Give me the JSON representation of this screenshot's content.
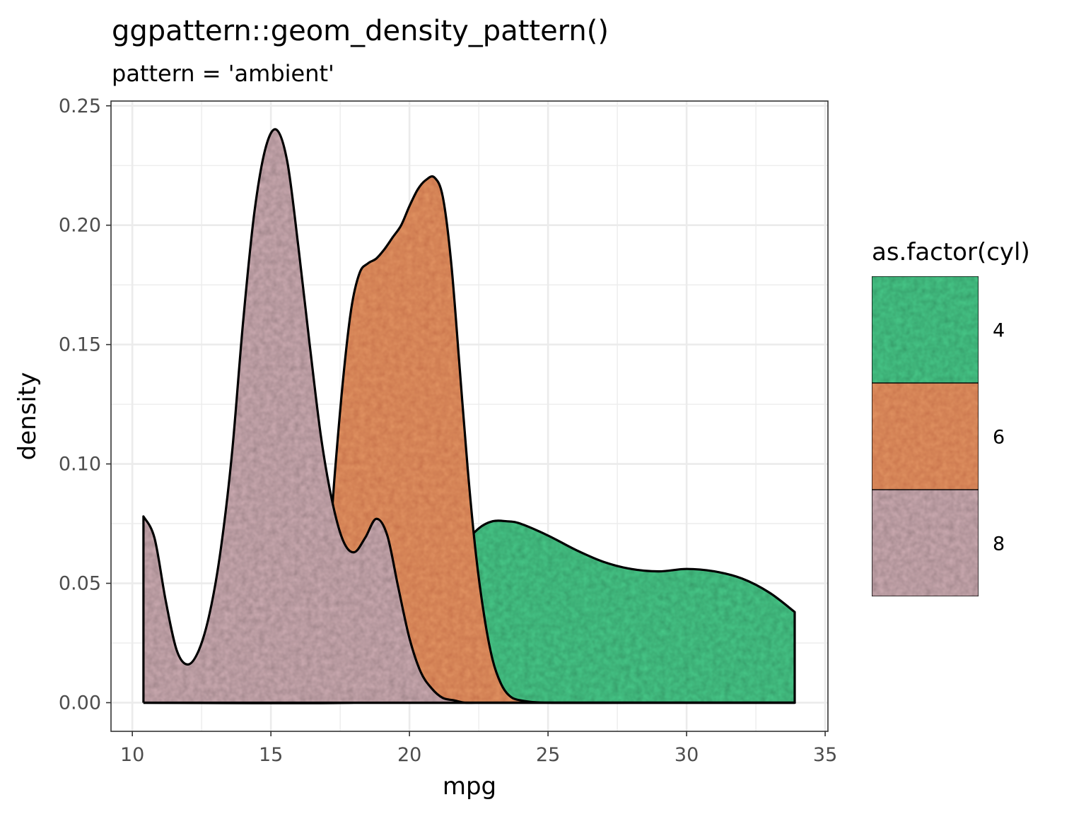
{
  "chart_data": {
    "type": "area",
    "title": "ggpattern::geom_density_pattern()",
    "subtitle": "pattern = 'ambient'",
    "xlabel": "mpg",
    "ylabel": "density",
    "xlim": [
      9.23,
      35.1
    ],
    "ylim": [
      -0.012,
      0.252
    ],
    "x_ticks": [
      10,
      15,
      20,
      25,
      30,
      35
    ],
    "x_tick_labels": [
      "10",
      "15",
      "20",
      "25",
      "30",
      "35"
    ],
    "y_ticks": [
      0,
      0.05,
      0.1,
      0.15,
      0.2,
      0.25
    ],
    "y_tick_labels": [
      "0.00",
      "0.05",
      "0.10",
      "0.15",
      "0.20",
      "0.25"
    ],
    "grid": true,
    "legend": {
      "title": "as.factor(cyl)",
      "position": "right",
      "entries": [
        "4",
        "6",
        "8"
      ]
    },
    "series": [
      {
        "name": "8",
        "color": "#b89aa0",
        "x": [
          10.4,
          10.8,
          11.2,
          11.6,
          12.0,
          12.4,
          12.8,
          13.2,
          13.6,
          14.0,
          14.4,
          14.8,
          15.2,
          15.6,
          16.0,
          16.4,
          16.8,
          17.2,
          17.6,
          18.0,
          18.4,
          18.8,
          19.2,
          19.6,
          20.0,
          20.4,
          20.8,
          21.2,
          21.6,
          22.0,
          22.4,
          23.0,
          24.0,
          26.0,
          30.0,
          33.9
        ],
        "y": [
          0.078,
          0.069,
          0.043,
          0.022,
          0.016,
          0.022,
          0.038,
          0.065,
          0.105,
          0.16,
          0.205,
          0.232,
          0.24,
          0.226,
          0.19,
          0.15,
          0.112,
          0.085,
          0.068,
          0.063,
          0.069,
          0.077,
          0.07,
          0.048,
          0.027,
          0.013,
          0.006,
          0.002,
          0.001,
          0.0,
          0.0,
          0.0,
          0.0,
          0.0,
          0.0,
          0.0
        ]
      },
      {
        "name": "6",
        "color": "#d58457",
        "x": [
          10.4,
          14.0,
          15.0,
          16.0,
          16.5,
          17.0,
          17.3,
          17.6,
          17.9,
          18.2,
          18.5,
          18.8,
          19.1,
          19.4,
          19.7,
          20.0,
          20.3,
          20.6,
          20.9,
          21.2,
          21.5,
          21.8,
          22.1,
          22.4,
          22.7,
          23.0,
          23.3,
          23.6,
          24.0,
          25.0,
          28.0,
          33.9
        ],
        "y": [
          0.0,
          0.0,
          0.001,
          0.006,
          0.018,
          0.05,
          0.095,
          0.135,
          0.165,
          0.18,
          0.184,
          0.186,
          0.19,
          0.195,
          0.2,
          0.208,
          0.215,
          0.219,
          0.22,
          0.212,
          0.185,
          0.142,
          0.098,
          0.062,
          0.036,
          0.018,
          0.008,
          0.003,
          0.001,
          0.0,
          0.0,
          0.0
        ]
      },
      {
        "name": "4",
        "color": "#3fb47a",
        "x": [
          10.4,
          18.0,
          19.0,
          20.0,
          20.5,
          21.0,
          21.5,
          22.0,
          22.5,
          23.0,
          23.5,
          24.0,
          25.0,
          26.0,
          27.0,
          28.0,
          29.0,
          30.0,
          31.0,
          32.0,
          33.0,
          33.9
        ],
        "y": [
          0.0,
          0.0,
          0.003,
          0.012,
          0.022,
          0.036,
          0.052,
          0.066,
          0.073,
          0.076,
          0.076,
          0.075,
          0.07,
          0.064,
          0.059,
          0.056,
          0.055,
          0.056,
          0.055,
          0.052,
          0.046,
          0.038
        ]
      }
    ]
  }
}
